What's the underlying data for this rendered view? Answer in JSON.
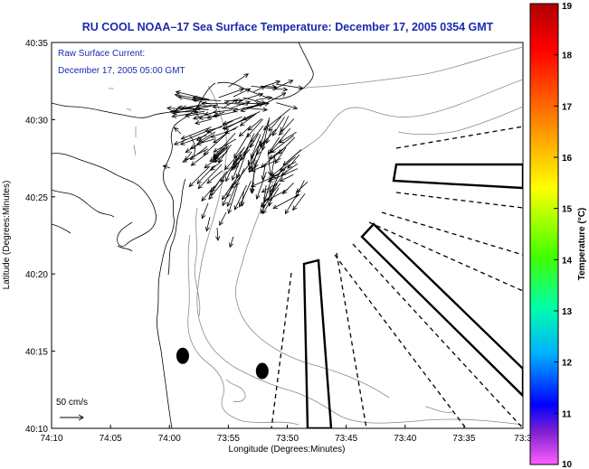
{
  "chart_data": {
    "type": "map",
    "title": "RU COOL  NOAA–17  Sea Surface Temperature:  December 17, 2005 0354 GMT",
    "annotation_line1": "Raw Surface Current:",
    "annotation_line2": "December 17, 2005 05:00 GMT",
    "xlabel": "Longitude (Degrees:Minutes)",
    "ylabel": "Latitude (Degrees:Minutes)",
    "x_ticks": [
      "74:10",
      "74:05",
      "74:00",
      "73:55",
      "73:50",
      "73:45",
      "73:40",
      "73:35",
      "73:3"
    ],
    "y_ticks": [
      "40:35",
      "40:30",
      "40:25",
      "40:20",
      "40:15",
      "40:10"
    ],
    "xlim": [
      -74.1667,
      -73.5
    ],
    "ylim": [
      40.1667,
      40.5833
    ],
    "scale_label": "50 cm/s",
    "colorbar": {
      "label": "Temperature (°C)",
      "min": 10,
      "max": 19,
      "ticks": [
        "19",
        "18",
        "17",
        "16",
        "15",
        "14",
        "13",
        "12",
        "11",
        "10"
      ],
      "colors": [
        "#b00000",
        "#ff0000",
        "#ff8000",
        "#ffff00",
        "#40ff00",
        "#00ffaa",
        "#00b0ff",
        "#0000ff",
        "#8020d0",
        "#ff60ff"
      ]
    },
    "markers": [
      {
        "lon": -73.9812,
        "lat": 40.245
      },
      {
        "lon": -73.8688,
        "lat": 40.2286
      }
    ]
  }
}
